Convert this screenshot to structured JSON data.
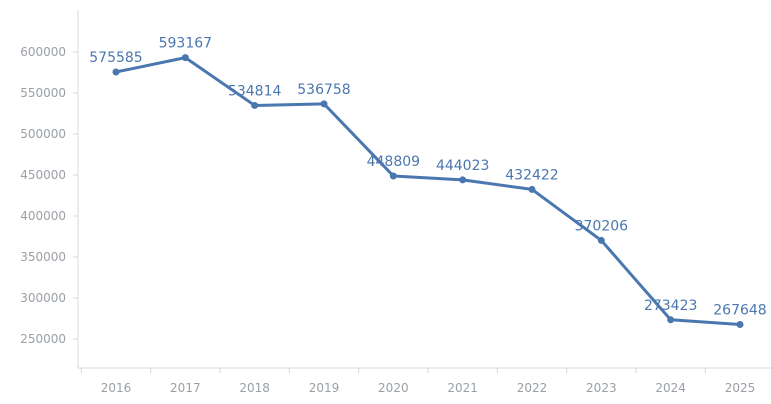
{
  "chart_data": {
    "type": "line",
    "title": "",
    "xlabel": "",
    "ylabel": "",
    "categories": [
      "2016",
      "2017",
      "2018",
      "2019",
      "2020",
      "2021",
      "2022",
      "2023",
      "2024",
      "2025"
    ],
    "series": [
      {
        "values": [
          575585,
          593167,
          534814,
          536758,
          448809,
          444023,
          432422,
          370206,
          273423,
          267648
        ],
        "color": "#4a77b0"
      }
    ],
    "ylim": [
      200000,
      600000
    ],
    "yticks": [
      250000,
      300000,
      350000,
      400000,
      450000,
      500000,
      550000,
      600000
    ],
    "ytick_labels": [
      "250000",
      "300000",
      "350000",
      "400000",
      "450000",
      "500000",
      "550000",
      "600000"
    ],
    "data_labels": [
      "575585",
      "593167",
      "534814",
      "536758",
      "448809",
      "444023",
      "432422",
      "370206",
      "273423",
      "267648"
    ],
    "grid": false,
    "legend": "none"
  }
}
